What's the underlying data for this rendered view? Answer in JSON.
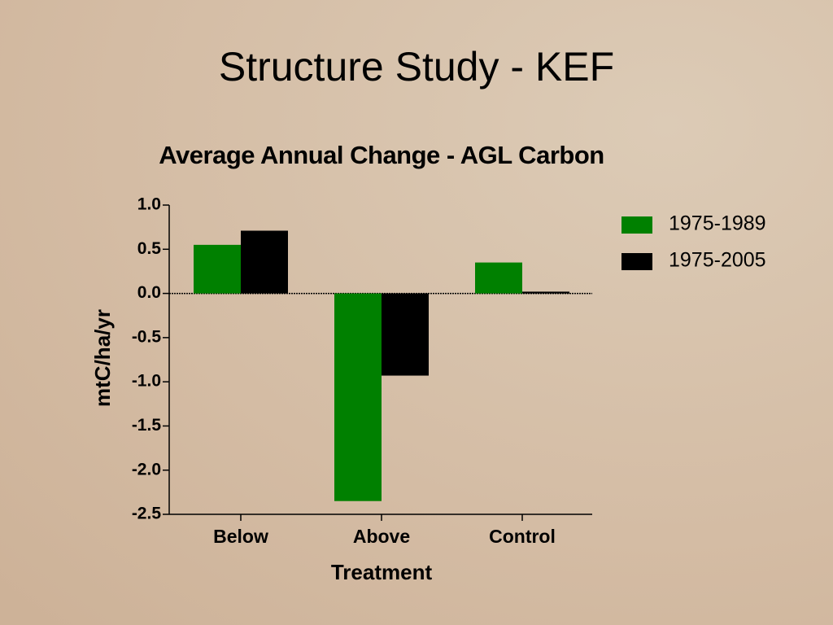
{
  "slide": {
    "title": "Structure Study - KEF"
  },
  "chart_data": {
    "type": "bar",
    "title": "Average Annual Change - AGL Carbon",
    "x_label": "Treatment",
    "y_label": "mtC/ha/yr",
    "categories": [
      "Below",
      "Above",
      "Control"
    ],
    "series": [
      {
        "name": "1975-1989",
        "color": "#008000",
        "values": [
          0.55,
          -2.35,
          0.35
        ]
      },
      {
        "name": "1975-2005",
        "color": "#000000",
        "values": [
          0.71,
          -0.93,
          0.02
        ]
      }
    ],
    "ylim": [
      -2.5,
      1.0
    ],
    "yticks": [
      {
        "value": 1.0,
        "label": "1.0"
      },
      0.5,
      {
        "value": 0,
        "label": "0.0"
      },
      -0.5,
      {
        "value": -1.0,
        "label": "-1.0"
      },
      -1.5,
      {
        "value": -2.0,
        "label": "-2.0"
      },
      -2.5
    ],
    "grid": false,
    "legend": "right"
  }
}
